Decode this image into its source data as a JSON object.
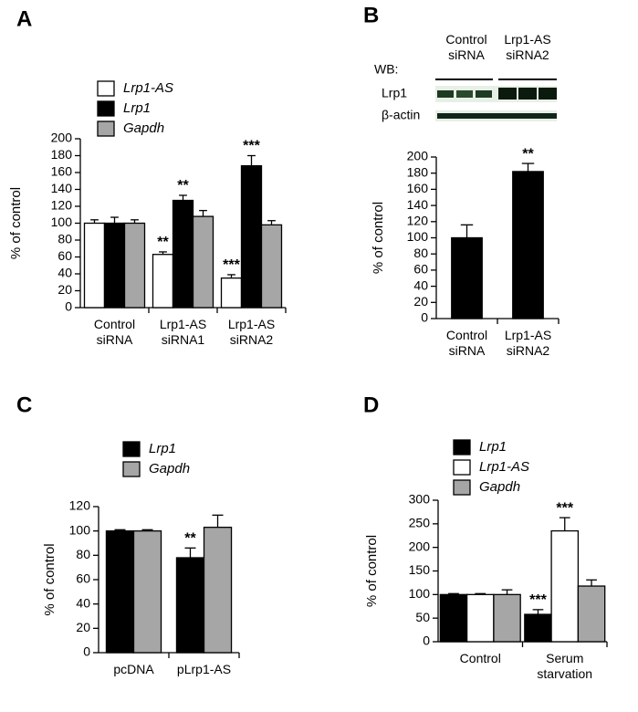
{
  "chart_data": [
    {
      "type": "bar",
      "panel": "A",
      "ylabel": "% of control",
      "categories": [
        "Control siRNA",
        "Lrp1-AS siRNA1",
        "Lrp1-AS siRNA2"
      ],
      "series": [
        {
          "name": "Lrp1-AS",
          "color": "#ffffff",
          "values": [
            100,
            63,
            35
          ],
          "errors": [
            4,
            3,
            4
          ],
          "significance": [
            null,
            "**",
            "***"
          ]
        },
        {
          "name": "Lrp1",
          "color": "#000000",
          "values": [
            100,
            127,
            168
          ],
          "errors": [
            7,
            6,
            12
          ],
          "significance": [
            null,
            "**",
            "***"
          ]
        },
        {
          "name": "Gapdh",
          "color": "#a6a6a6",
          "values": [
            100,
            108,
            98
          ],
          "errors": [
            4,
            7,
            5
          ],
          "significance": [
            null,
            null,
            null
          ]
        }
      ],
      "ylim": [
        0,
        200
      ],
      "yticks": [
        0,
        20,
        40,
        60,
        80,
        100,
        120,
        140,
        160,
        180,
        200
      ]
    },
    {
      "type": "bar",
      "panel": "B",
      "ylabel": "% of control",
      "blot": {
        "wb": "WB:",
        "rows": [
          "Lrp1",
          "β-actin"
        ],
        "lanes": [
          "Control siRNA",
          "Lrp1-AS siRNA2"
        ]
      },
      "categories": [
        "Control siRNA",
        "Lrp1-AS siRNA2"
      ],
      "series": [
        {
          "name": "Lrp1",
          "color": "#000000",
          "values": [
            100,
            182
          ],
          "errors": [
            16,
            10
          ],
          "significance": [
            null,
            "**"
          ]
        }
      ],
      "ylim": [
        0,
        200
      ],
      "yticks": [
        0,
        20,
        40,
        60,
        80,
        100,
        120,
        140,
        160,
        180,
        200
      ]
    },
    {
      "type": "bar",
      "panel": "C",
      "ylabel": "% of control",
      "categories": [
        "pcDNA",
        "pLrp1-AS"
      ],
      "series": [
        {
          "name": "Lrp1",
          "color": "#000000",
          "values": [
            100,
            78
          ],
          "errors": [
            1,
            8
          ],
          "significance": [
            null,
            "**"
          ]
        },
        {
          "name": "Gapdh",
          "color": "#a6a6a6",
          "values": [
            100,
            103
          ],
          "errors": [
            1,
            10
          ],
          "significance": [
            null,
            null
          ]
        }
      ],
      "ylim": [
        0,
        120
      ],
      "yticks": [
        0,
        20,
        40,
        60,
        80,
        100,
        120
      ]
    },
    {
      "type": "bar",
      "panel": "D",
      "ylabel": "% of control",
      "categories": [
        "Control",
        "Serum starvation"
      ],
      "series": [
        {
          "name": "Lrp1",
          "color": "#000000",
          "values": [
            100,
            58
          ],
          "errors": [
            2,
            10
          ],
          "significance": [
            null,
            "***"
          ]
        },
        {
          "name": "Lrp1-AS",
          "color": "#ffffff",
          "values": [
            100,
            235
          ],
          "errors": [
            2,
            28
          ],
          "significance": [
            null,
            "***"
          ]
        },
        {
          "name": "Gapdh",
          "color": "#a6a6a6",
          "values": [
            100,
            118
          ],
          "errors": [
            10,
            13
          ],
          "significance": [
            null,
            null
          ]
        }
      ],
      "ylim": [
        0,
        300
      ],
      "yticks": [
        0,
        50,
        100,
        150,
        200,
        250,
        300
      ]
    }
  ]
}
